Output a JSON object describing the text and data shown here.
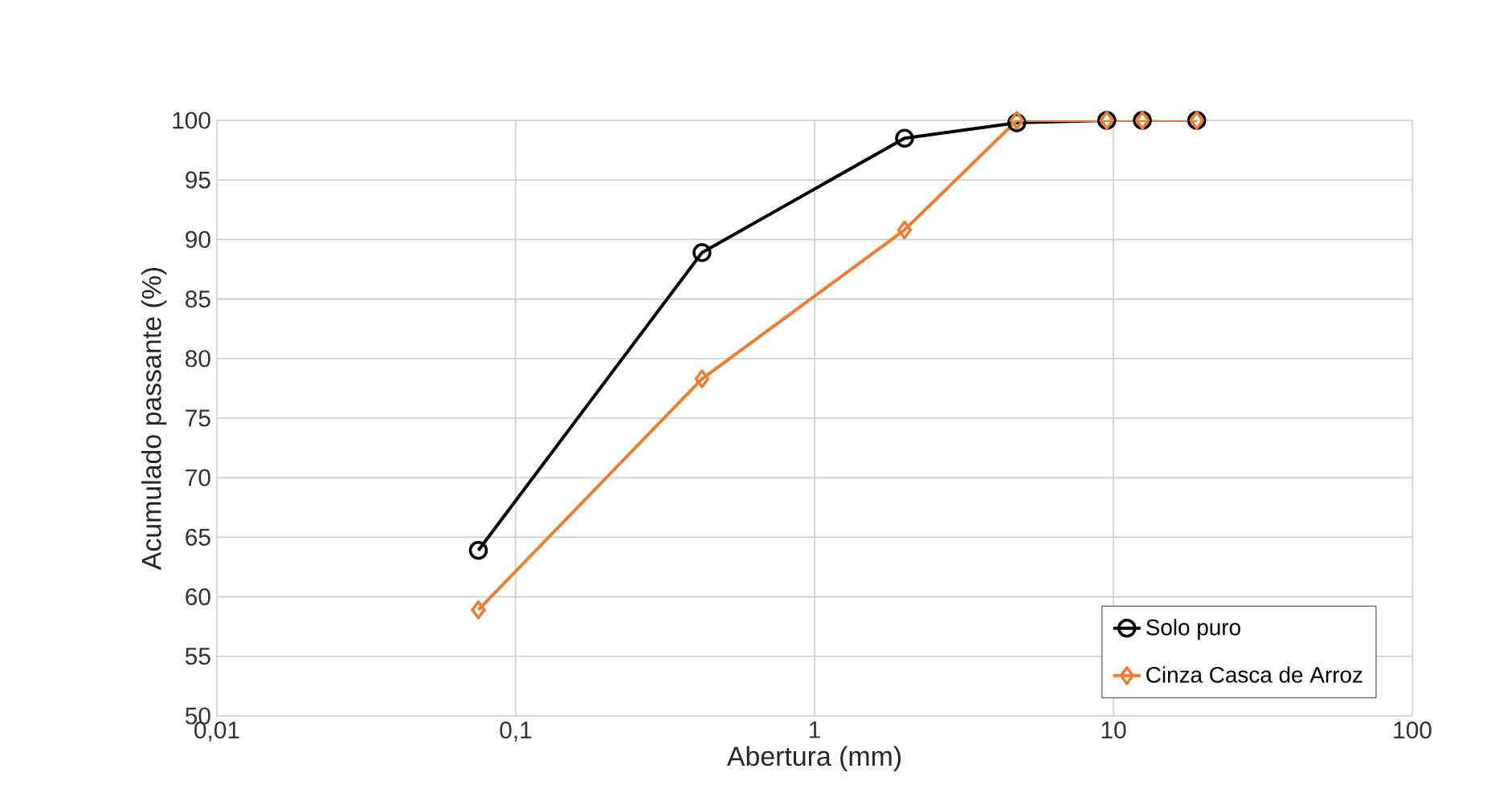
{
  "chart_data": {
    "type": "line",
    "xlabel": "Abertura (mm)",
    "ylabel": "Acumulado  passante (%)",
    "log": "x",
    "grid": true,
    "legend": "bottom right",
    "line_style": "solid",
    "xlim": [
      0.01,
      100
    ],
    "xticks": [
      {
        "value": 0.01,
        "label": "0,01"
      },
      {
        "value": 0.1,
        "label": "0,1"
      },
      1,
      10,
      100
    ],
    "ylim": [
      50,
      100
    ],
    "yticks": [
      50,
      55,
      60,
      65,
      70,
      75,
      80,
      85,
      90,
      95,
      100
    ],
    "series": [
      {
        "name": "Solo puro",
        "color": "#000000",
        "marker": "circle",
        "x": [
          0.075,
          0.42,
          2.0,
          4.75,
          9.5,
          12.5,
          19
        ],
        "values": [
          63.9,
          88.9,
          98.5,
          99.8,
          100,
          100,
          100
        ]
      },
      {
        "name": "Cinza Casca de Arroz",
        "color": "#ed7d31",
        "marker": "diamond",
        "x": [
          0.075,
          0.42,
          2.0,
          4.75,
          9.5,
          12.5,
          19
        ],
        "values": [
          58.9,
          78.3,
          90.8,
          100,
          100,
          100,
          100
        ]
      }
    ]
  }
}
